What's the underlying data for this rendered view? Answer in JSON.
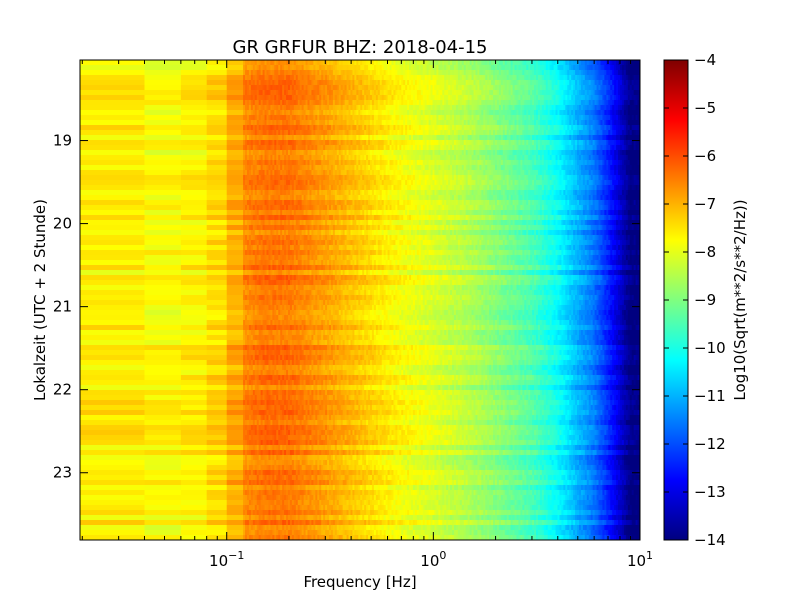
{
  "chart_data": {
    "type": "heatmap",
    "title": "GR GRFUR BHZ: 2018-04-15",
    "xlabel": "Frequency [Hz]",
    "ylabel": "Lokalzeit (UTC + 2 Stunde)",
    "x_scale": "log",
    "xlim": [
      0.0195,
      10
    ],
    "ylim": [
      18.03,
      23.81
    ],
    "y_inverted": true,
    "x_ticks": [
      0.1,
      1,
      10
    ],
    "x_tick_labels": [
      {
        "base": "10",
        "exp": "−1"
      },
      {
        "base": "10",
        "exp": "0"
      },
      {
        "base": "10",
        "exp": "1"
      }
    ],
    "y_ticks": [
      19,
      20,
      21,
      22,
      23
    ],
    "y_tick_labels": [
      "19",
      "20",
      "21",
      "22",
      "23"
    ],
    "colorbar": {
      "label": "Log10(Sqrt(m**2/s**2/Hz))",
      "range": [
        -14,
        -4
      ],
      "colormap": "jet",
      "ticks": [
        -4,
        -5,
        -6,
        -7,
        -8,
        -9,
        -10,
        -11,
        -12,
        -13,
        -14
      ],
      "tick_labels": [
        "−4",
        "−5",
        "−6",
        "−7",
        "−8",
        "−9",
        "−10",
        "−11",
        "−12",
        "−13",
        "−14"
      ]
    },
    "spectrum_profile": {
      "freq_hz": [
        0.0195,
        0.03,
        0.04,
        0.06,
        0.08,
        0.1,
        0.12,
        0.15,
        0.2,
        0.3,
        0.5,
        0.7,
        1,
        1.5,
        2,
        3,
        4,
        5,
        6,
        7,
        8,
        9,
        10
      ],
      "level": [
        -7.6,
        -7.6,
        -7.7,
        -7.8,
        -7.5,
        -7.3,
        -6.6,
        -6.4,
        -6.4,
        -6.8,
        -7.4,
        -7.8,
        -8.1,
        -8.5,
        -8.9,
        -9.5,
        -10.2,
        -11.0,
        -11.6,
        -12.4,
        -13.2,
        -14.0,
        -14.0
      ]
    }
  }
}
